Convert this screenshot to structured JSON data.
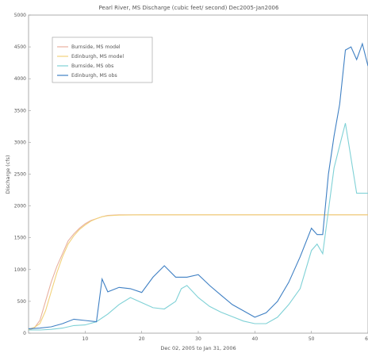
{
  "chart_data": {
    "type": "line",
    "title": "Pearl River, MS Discharge (cubic feet/ second) Dec2005-Jan2006",
    "xlabel": "Dec 02, 2005 to Jan 31, 2006",
    "ylabel": "Discharge (cfs)",
    "xlim": [
      0,
      60
    ],
    "ylim": [
      0,
      5000
    ],
    "xticks": [
      10,
      20,
      30,
      40,
      50,
      60
    ],
    "yticks": [
      0,
      500,
      1000,
      1500,
      2000,
      2500,
      3000,
      3500,
      4000,
      4500,
      5000
    ],
    "xtick_labels": [
      "10",
      "20",
      "30",
      "40",
      "50",
      "60"
    ],
    "ytick_labels": [
      "0",
      "500",
      "1000",
      "1500",
      "2000",
      "2500",
      "3000",
      "3500",
      "4000",
      "4500",
      "5000"
    ],
    "grid": false,
    "legend_position": "top-left",
    "series": [
      {
        "name": "Burnside, MS model",
        "color": "#e8b0a0",
        "x": [
          0,
          1,
          2,
          3,
          4,
          5,
          6,
          7,
          8,
          9,
          10,
          11,
          12,
          13,
          14,
          16,
          20,
          30,
          40,
          50,
          55,
          60
        ],
        "y": [
          50,
          80,
          200,
          500,
          800,
          1050,
          1250,
          1450,
          1560,
          1650,
          1720,
          1770,
          1800,
          1830,
          1850,
          1860,
          1860,
          1860,
          1860,
          1860,
          1860,
          1860
        ]
      },
      {
        "name": "Edinburgh, MS model",
        "color": "#f2d27a",
        "x": [
          0,
          1,
          2,
          3,
          4,
          5,
          6,
          7,
          8,
          9,
          10,
          11,
          12,
          13,
          14,
          16,
          20,
          30,
          40,
          50,
          55,
          60
        ],
        "y": [
          60,
          90,
          150,
          350,
          650,
          950,
          1200,
          1400,
          1530,
          1630,
          1700,
          1760,
          1800,
          1830,
          1845,
          1855,
          1860,
          1860,
          1860,
          1860,
          1860,
          1860
        ]
      },
      {
        "name": "Burnside, MS obs",
        "color": "#7fd1d6",
        "x": [
          0,
          2,
          4,
          6,
          8,
          10,
          12,
          14,
          16,
          18,
          20,
          22,
          24,
          26,
          27,
          28,
          30,
          32,
          34,
          36,
          38,
          40,
          42,
          44,
          46,
          48,
          50,
          51,
          52,
          54,
          56,
          58,
          60
        ],
        "y": [
          50,
          50,
          60,
          80,
          120,
          130,
          180,
          300,
          450,
          560,
          480,
          400,
          380,
          500,
          700,
          750,
          560,
          420,
          330,
          260,
          190,
          150,
          150,
          250,
          450,
          700,
          1300,
          1400,
          1250,
          2600,
          3300,
          2200,
          2200
        ]
      },
      {
        "name": "Edinburgh, MS obs",
        "color": "#3f80c4",
        "x": [
          0,
          2,
          4,
          6,
          8,
          10,
          12,
          13,
          14,
          16,
          18,
          20,
          22,
          24,
          26,
          28,
          30,
          32,
          34,
          36,
          38,
          40,
          42,
          44,
          46,
          48,
          50,
          51,
          52,
          53,
          54,
          55,
          56,
          57,
          58,
          59,
          60
        ],
        "y": [
          70,
          80,
          100,
          150,
          220,
          200,
          180,
          850,
          650,
          720,
          700,
          640,
          880,
          1060,
          880,
          880,
          920,
          750,
          600,
          450,
          350,
          250,
          320,
          500,
          800,
          1200,
          1650,
          1550,
          1550,
          2500,
          3100,
          3600,
          4450,
          4500,
          4300,
          4550,
          4200
        ]
      }
    ]
  }
}
